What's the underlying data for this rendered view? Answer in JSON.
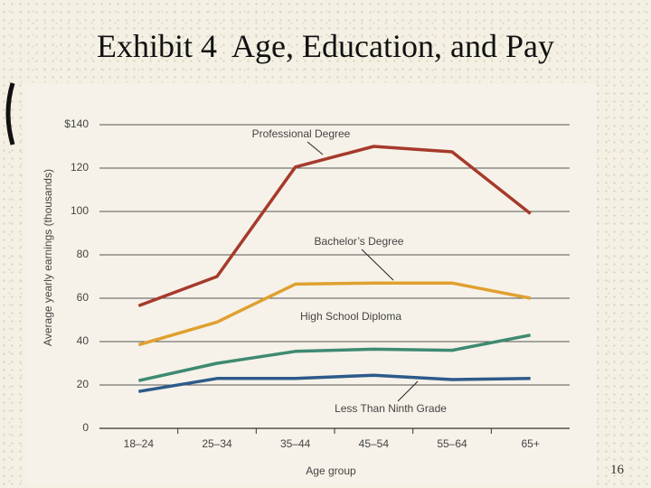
{
  "slide_title": "Exhibit 4  Age, Education, and Pay",
  "slide_number": "16",
  "chart_data": {
    "type": "line",
    "x_label": "Age group",
    "y_label": "Average yearly earnings (thousands)",
    "categories": [
      "18–24",
      "25–34",
      "35–44",
      "45–54",
      "55–64",
      "65+"
    ],
    "ylim": [
      0,
      140
    ],
    "yticks": [
      0,
      20,
      40,
      60,
      80,
      100,
      120,
      {
        "value": 140,
        "label": "$140"
      }
    ],
    "grid": true,
    "series": [
      {
        "name": "Professional Degree",
        "color": "#a63a2c",
        "values": [
          56.5,
          70,
          120.5,
          130,
          127.5,
          99
        ]
      },
      {
        "name": "Bachelor’s Degree",
        "color": "#e0a030",
        "values": [
          38.5,
          49,
          66.5,
          67,
          67,
          60
        ]
      },
      {
        "name": "High School Diploma",
        "color": "#3e8a72",
        "values": [
          22,
          30,
          35.5,
          36.5,
          36,
          43
        ]
      },
      {
        "name": "Less Than Ninth Grade",
        "color": "#2d5a8a",
        "values": [
          17,
          23,
          23,
          24.5,
          22.5,
          23
        ]
      }
    ]
  }
}
